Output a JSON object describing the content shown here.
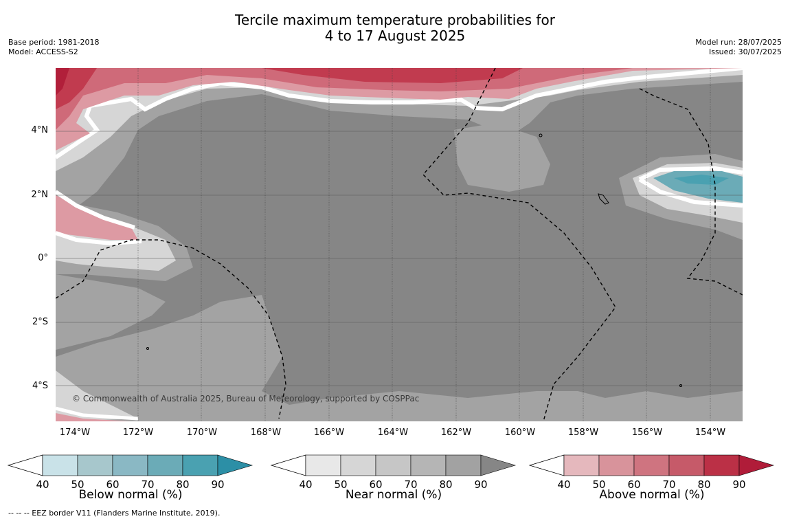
{
  "title": "Tercile maximum temperature probabilities for\n4 to 17 August 2025",
  "meta_left": {
    "base_period": "Base period: 1981-2018",
    "model": "Model: ACCESS-S2"
  },
  "meta_right": {
    "model_run": "Model run: 28/07/2025",
    "issued": "Issued: 30/07/2025"
  },
  "credit": "© Commonwealth of Australia 2025, Bureau of Meteorology, supported by COSPPac",
  "footer": "--  --  -- EEZ border V11 (Flanders Marine Institute, 2019).",
  "map": {
    "lat_ticks": [
      "4°N",
      "2°N",
      "0°",
      "2°S",
      "4°S"
    ],
    "lon_ticks": [
      "174°W",
      "172°W",
      "170°W",
      "168°W",
      "166°W",
      "164°W",
      "162°W",
      "160°W",
      "158°W",
      "156°W",
      "154°W"
    ],
    "colors": {
      "near_base": "#868686",
      "near_70": "#a3a3a3",
      "near_60": "#b8b8b8",
      "near_50": "#d6d6d6",
      "above_90": "#b11f3a",
      "above_80": "#c13b4f",
      "above_70": "#cf6a79",
      "above_50": "#dd9aa3",
      "below_70": "#6badb8",
      "below_80": "#4aa1b1"
    }
  },
  "legends": [
    {
      "title": "Below normal (%)",
      "ticks": [
        "40",
        "50",
        "60",
        "70",
        "80",
        "90"
      ],
      "colors": [
        "#c9e2e8",
        "#a7c7cc",
        "#8ab8c4",
        "#6babb7",
        "#4aa1b1",
        "#2c8fa6"
      ]
    },
    {
      "title": "Near normal (%)",
      "ticks": [
        "40",
        "50",
        "60",
        "70",
        "80",
        "90"
      ],
      "colors": [
        "#e8e8e8",
        "#d6d6d6",
        "#c6c6c6",
        "#b5b5b5",
        "#a2a2a2",
        "#868686"
      ]
    },
    {
      "title": "Above normal (%)",
      "ticks": [
        "40",
        "50",
        "60",
        "70",
        "80",
        "90"
      ],
      "colors": [
        "#e5b8bd",
        "#d8939b",
        "#cf7480",
        "#c65a69",
        "#bb3046",
        "#b01c39"
      ]
    }
  ]
}
